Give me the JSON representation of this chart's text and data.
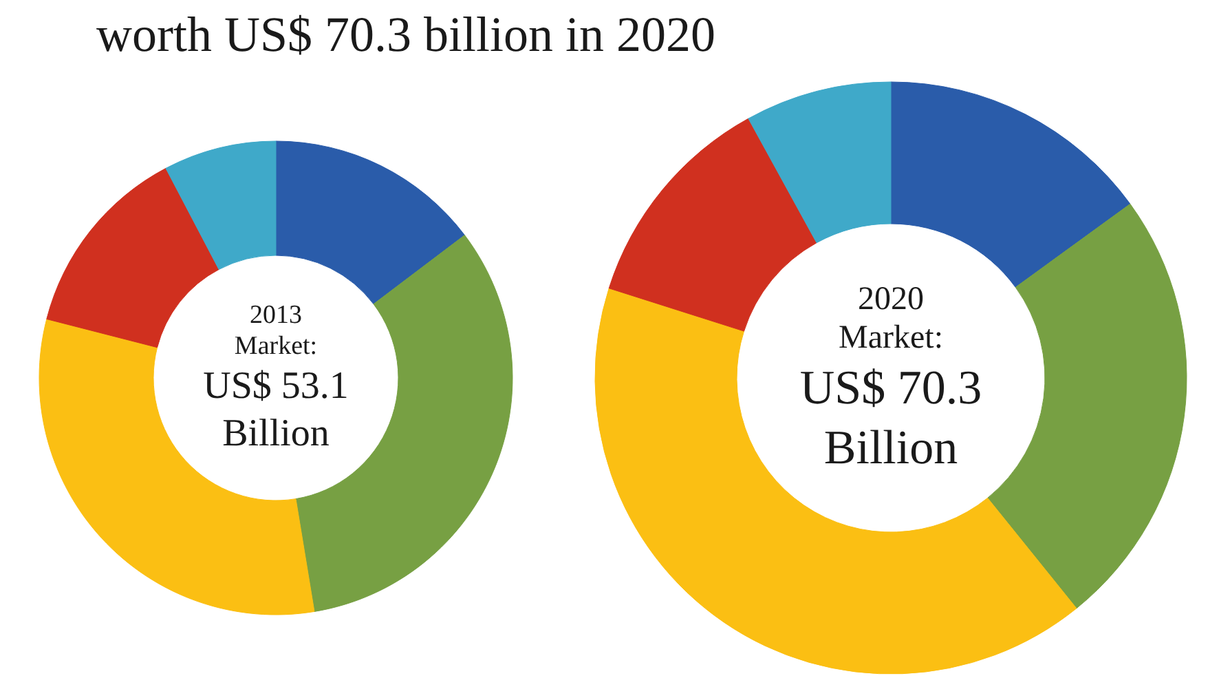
{
  "chart_data": [
    {
      "type": "donut",
      "title": "worth US$ 70.3 billion in 2020",
      "categories": [
        null,
        null,
        null,
        null,
        null
      ],
      "values": [
        14.7,
        32.7,
        31.6,
        13.3,
        7.7
      ],
      "colors": [
        "#2a5caa",
        "#77a043",
        "#fbbf13",
        "#d0301f",
        "#3fa9c9"
      ],
      "annotations": [
        "2013",
        "Market:",
        "US$ 53.1",
        "Billion"
      ]
    },
    {
      "type": "donut",
      "categories": [
        null,
        null,
        null,
        null,
        null
      ],
      "values": [
        15.0,
        24.2,
        40.7,
        12.1,
        8.0
      ],
      "colors": [
        "#2a5caa",
        "#77a043",
        "#fbbf13",
        "#d0301f",
        "#3fa9c9"
      ],
      "annotations": [
        "2020",
        "Market:",
        "US$ 70.3",
        "Billion"
      ]
    }
  ]
}
